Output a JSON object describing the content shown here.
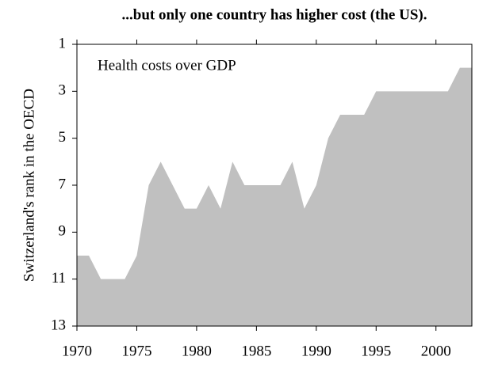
{
  "chart_data": {
    "type": "area",
    "title": "...but only one country has higher cost (the US).",
    "annotation": "Health costs over GDP",
    "y_label": "Switzerland's rank in the OECD",
    "color": "#c0c0c0",
    "x": [
      1970,
      1971,
      1972,
      1973,
      1974,
      1975,
      1976,
      1977,
      1978,
      1979,
      1980,
      1981,
      1982,
      1983,
      1984,
      1985,
      1986,
      1987,
      1988,
      1989,
      1990,
      1991,
      1992,
      1993,
      1994,
      1995,
      1996,
      1997,
      1998,
      1999,
      2000,
      2001,
      2002,
      2003
    ],
    "values": [
      10,
      10,
      11,
      11,
      11,
      10,
      7,
      6,
      7,
      8,
      8,
      7,
      8,
      6,
      7,
      7,
      7,
      7,
      6,
      8,
      7,
      5,
      4,
      4,
      4,
      3,
      3,
      3,
      3,
      3,
      3,
      3,
      2,
      2
    ],
    "xlim": [
      1970,
      2003
    ],
    "xticks": [
      1970,
      1975,
      1980,
      1985,
      1990,
      1995,
      2000
    ],
    "ylim": [
      13,
      1
    ],
    "yticks": [
      1,
      3,
      5,
      7,
      9,
      11,
      13
    ]
  }
}
